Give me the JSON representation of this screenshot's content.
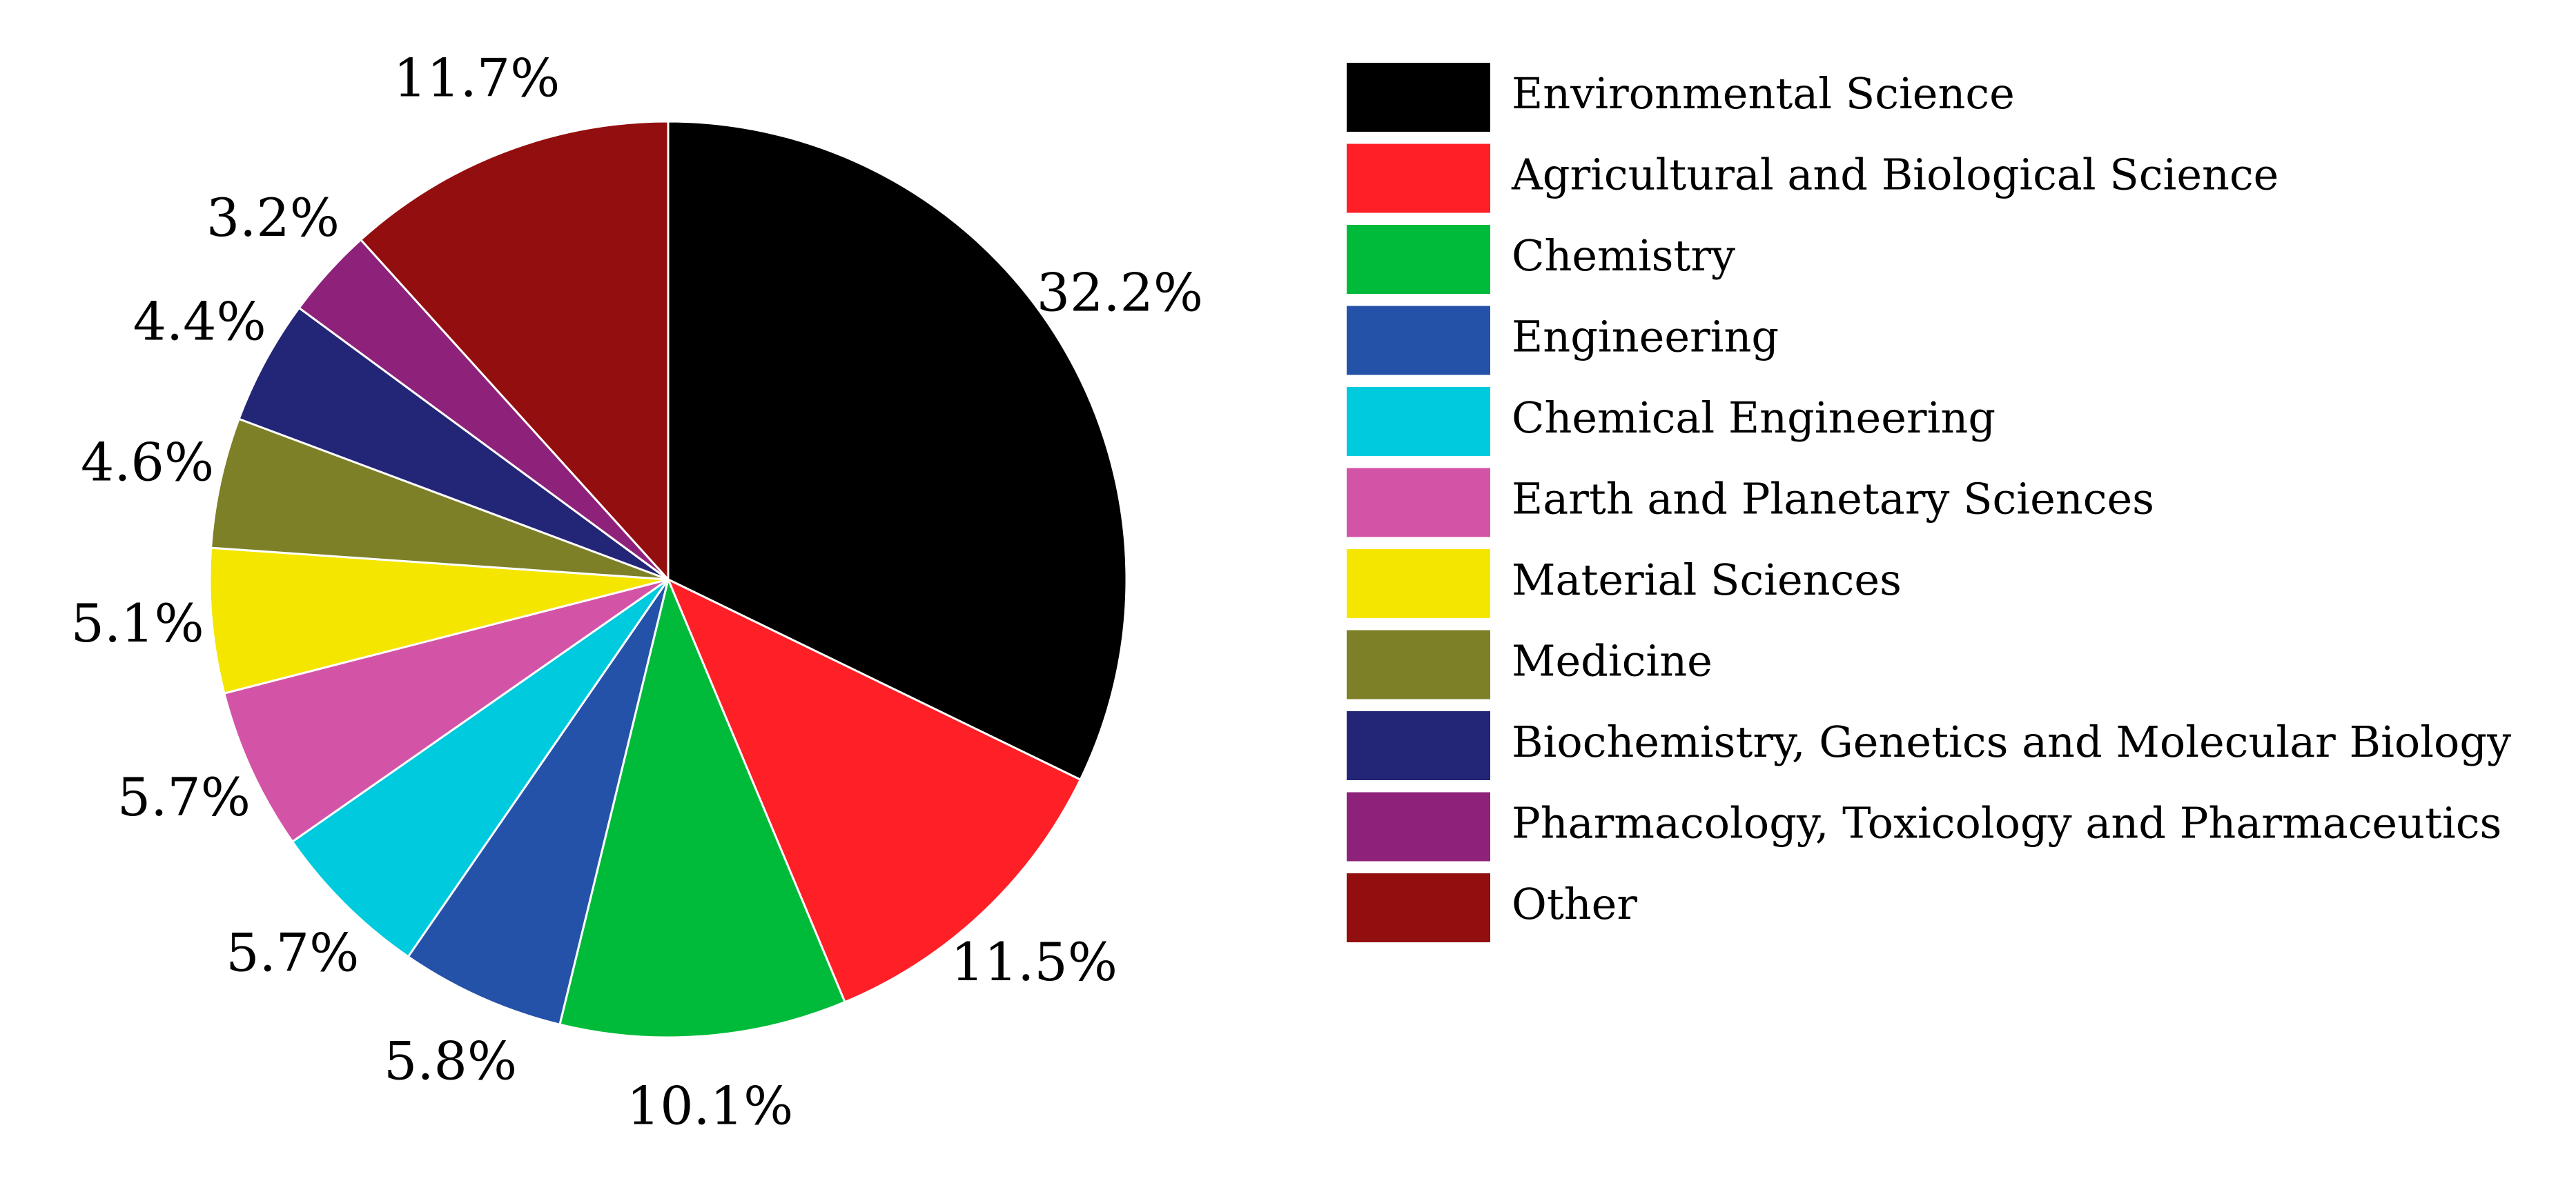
{
  "chart_data": {
    "type": "pie",
    "title": "",
    "start": "top",
    "direction": "clockwise",
    "slices": [
      {
        "label": "Environmental Science",
        "value": 32.2,
        "text": "32.2%",
        "color": "#000000"
      },
      {
        "label": "Agricultural and Biological Science",
        "value": 11.5,
        "text": "11.5%",
        "color": "#ff1f26"
      },
      {
        "label": "Chemistry",
        "value": 10.1,
        "text": "10.1%",
        "color": "#00bb3a"
      },
      {
        "label": "Engineering",
        "value": 5.8,
        "text": "5.8%",
        "color": "#2452a8"
      },
      {
        "label": "Chemical Engineering",
        "value": 5.7,
        "text": "5.7%",
        "color": "#00cadd"
      },
      {
        "label": "Earth and Planetary Sciences",
        "value": 5.7,
        "text": "5.7%",
        "color": "#d354a6"
      },
      {
        "label": "Material Sciences",
        "value": 5.1,
        "text": "5.1%",
        "color": "#f5e600"
      },
      {
        "label": "Medicine",
        "value": 4.6,
        "text": "4.6%",
        "color": "#7e8028"
      },
      {
        "label": "Biochemistry, Genetics and Molecular Biology",
        "value": 4.4,
        "text": "4.4%",
        "color": "#232576"
      },
      {
        "label": "Pharmacology, Toxicology and Pharmaceutics",
        "value": 3.2,
        "text": "3.2%",
        "color": "#8e227a"
      },
      {
        "label": "Other",
        "value": 11.7,
        "text": "11.7%",
        "color": "#930e0e"
      }
    ],
    "legend": "right"
  }
}
